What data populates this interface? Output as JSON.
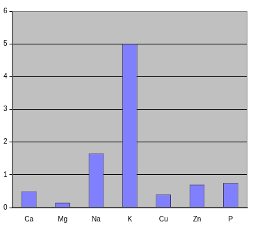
{
  "chart_data": {
    "type": "bar",
    "categories": [
      "Ca",
      "Mg",
      "Na",
      "K",
      "Cu",
      "Zn",
      "P"
    ],
    "values": [
      0.5,
      0.15,
      1.65,
      5.0,
      0.4,
      0.7,
      0.75
    ],
    "color": "#8080ff",
    "ylim": [
      0,
      6
    ],
    "yticks": [
      0,
      1,
      2,
      3,
      4,
      5,
      6
    ],
    "grid": true
  }
}
